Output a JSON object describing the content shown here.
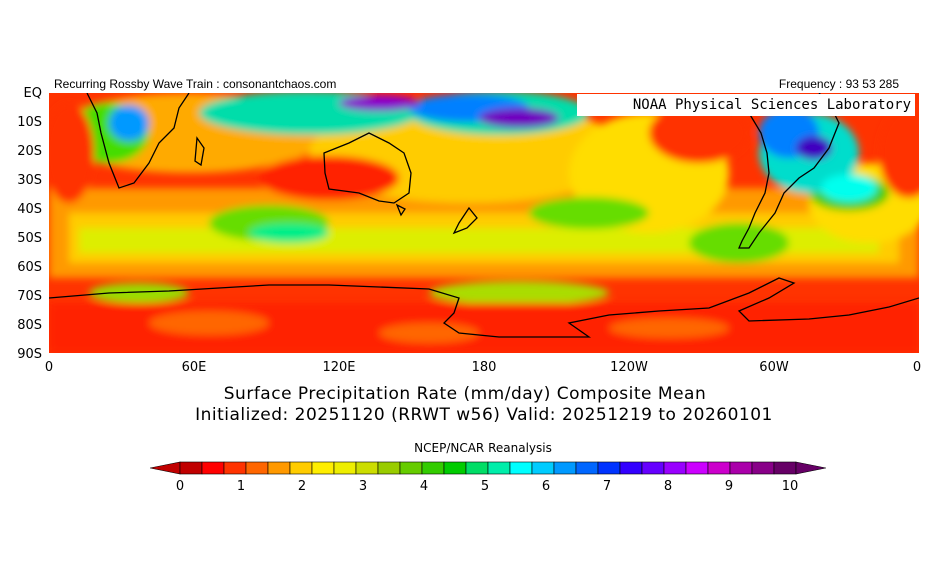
{
  "header": {
    "left_text": "Recurring Rossby Wave Train : consonantchaos.com",
    "right_text": "Frequency : 93 53 285"
  },
  "map": {
    "credit": "NOAA Physical Sciences Laboratory",
    "lat_labels": [
      "EQ",
      "10S",
      "20S",
      "30S",
      "40S",
      "50S",
      "60S",
      "70S",
      "80S",
      "90S"
    ],
    "lon_labels": [
      "0",
      "60E",
      "120E",
      "180",
      "120W",
      "60W",
      "0"
    ],
    "background_color": "#ff3300",
    "feature_colors": [
      "#ff8000",
      "#ffc000",
      "#ffff00",
      "#c0e020",
      "#40e040",
      "#00e080",
      "#00e0e0",
      "#0080ff",
      "#6000c0",
      "#a000a0"
    ]
  },
  "title": {
    "line1": "Surface Precipitation Rate (mm/day) Composite Mean",
    "line2": "Initialized: 20251120 (RRWT w56) Valid: 20251219 to 20260101"
  },
  "colorbar": {
    "source": "NCEP/NCAR Reanalysis",
    "tick_labels": [
      "0",
      "1",
      "2",
      "3",
      "4",
      "5",
      "6",
      "7",
      "8",
      "9",
      "10"
    ],
    "colors": [
      "#c00000",
      "#ff0000",
      "#ff3300",
      "#ff6600",
      "#ff9900",
      "#ffcc00",
      "#ffee00",
      "#eeee00",
      "#ccdd00",
      "#99cc00",
      "#66cc00",
      "#33cc00",
      "#00cc00",
      "#00dd66",
      "#00eeaa",
      "#00ffff",
      "#00ccff",
      "#0099ff",
      "#0066ff",
      "#0033ff",
      "#3300ff",
      "#6600ff",
      "#9900ff",
      "#cc00ff",
      "#cc00cc",
      "#aa00aa",
      "#880088",
      "#660066"
    ]
  }
}
